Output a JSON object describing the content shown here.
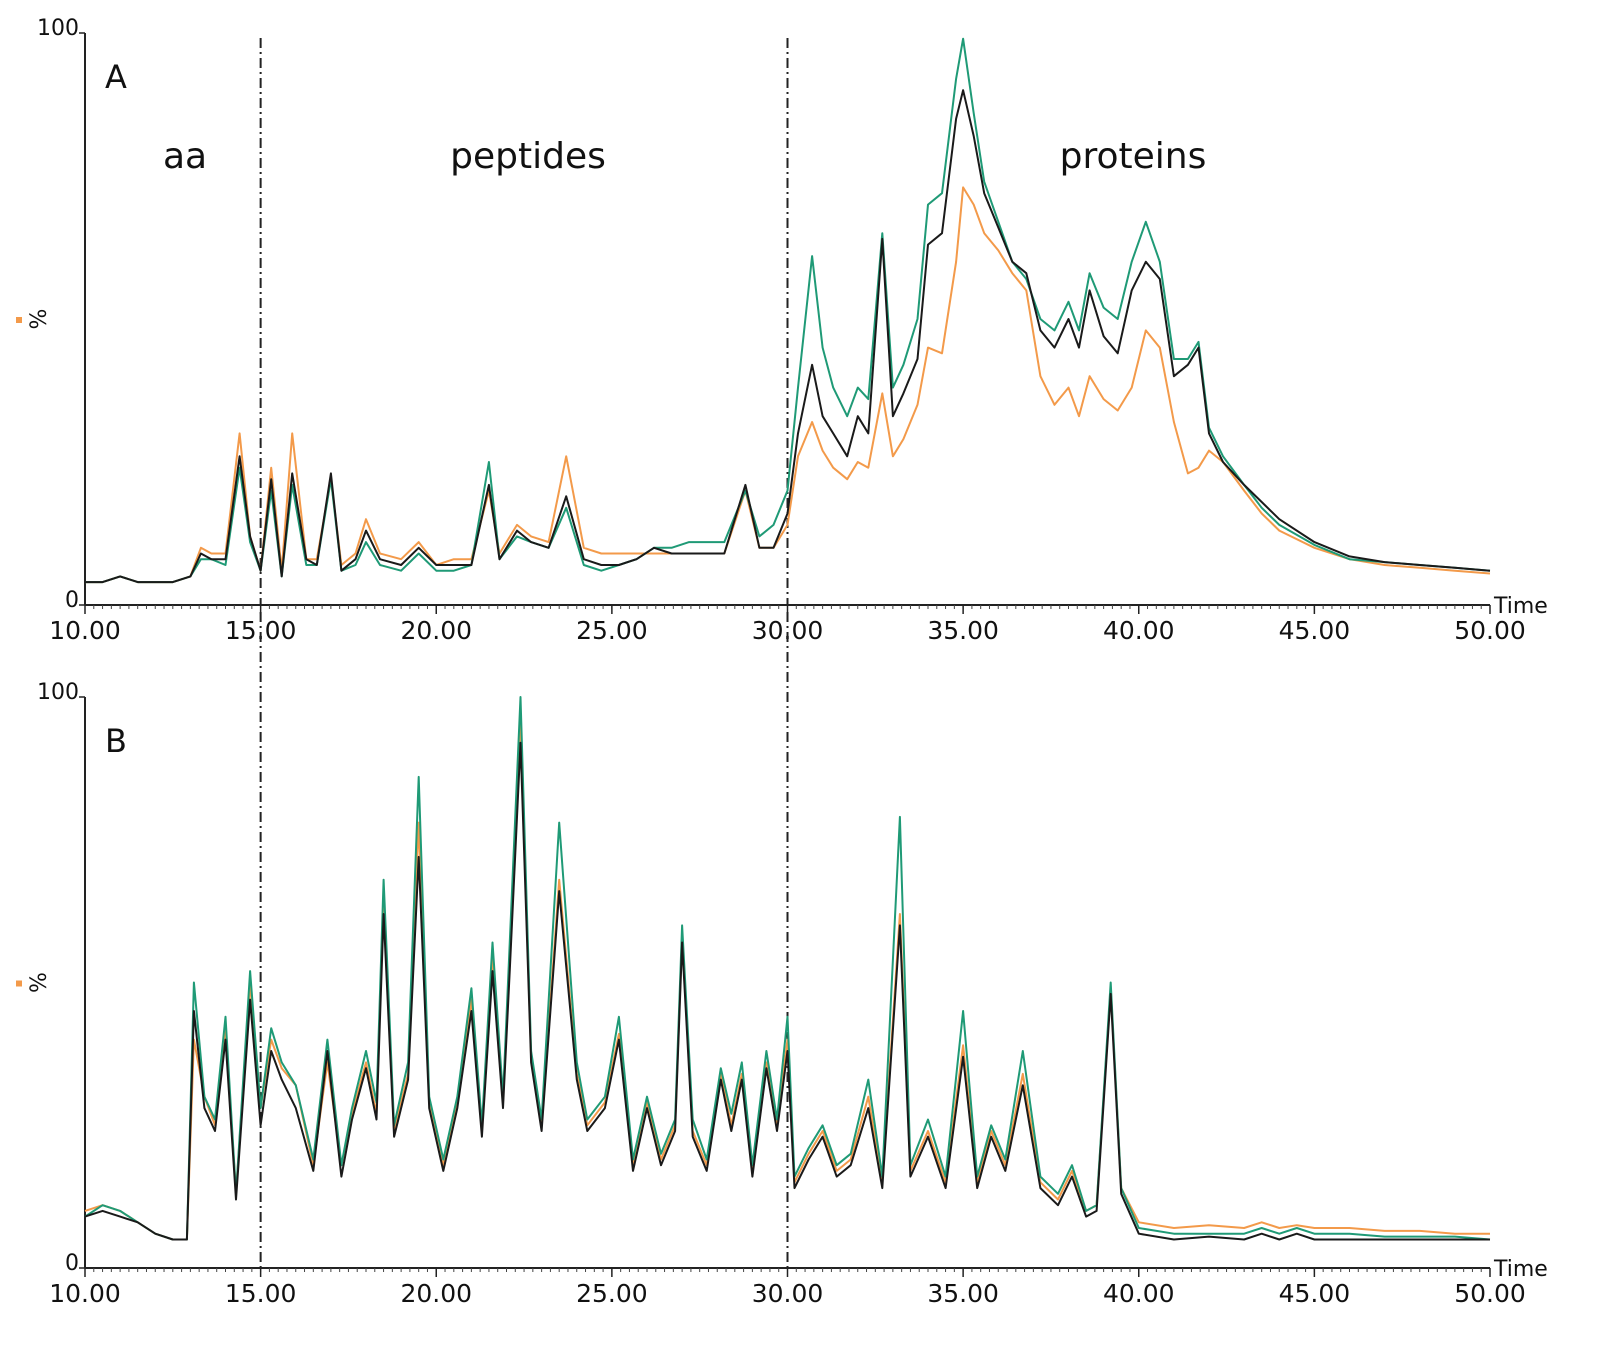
{
  "chart_data": [
    {
      "type": "line",
      "panel_label": "A",
      "annotations": [
        "aa",
        "peptides",
        "proteins"
      ],
      "ylabel": "%",
      "xlabel": "Time",
      "vlines": [
        15,
        30
      ],
      "xlim": [
        10,
        50
      ],
      "ylim": [
        0,
        100
      ],
      "yticks": [
        0,
        100
      ],
      "xticks": [
        {
          "value": 10,
          "label": "10.00"
        },
        {
          "value": 15,
          "label": "15.00"
        },
        {
          "value": 20,
          "label": "20.00"
        },
        {
          "value": 25,
          "label": "25.00"
        },
        {
          "value": 30,
          "label": "30.00"
        },
        {
          "value": 35,
          "label": "35.00"
        },
        {
          "value": 40,
          "label": "40.00"
        },
        {
          "value": 45,
          "label": "45.00"
        },
        {
          "value": 50,
          "label": "50.00"
        }
      ],
      "x": [
        10,
        10.5,
        11,
        11.5,
        12,
        12.5,
        13,
        13.3,
        13.6,
        14,
        14.4,
        14.7,
        15,
        15.3,
        15.6,
        15.9,
        16.3,
        16.6,
        17,
        17.3,
        17.7,
        18,
        18.4,
        19,
        19.5,
        20,
        20.5,
        21,
        21.5,
        21.8,
        22.3,
        22.7,
        23.2,
        23.7,
        24.2,
        24.7,
        25.2,
        25.7,
        26.2,
        26.7,
        27.2,
        27.7,
        28.2,
        28.8,
        29.2,
        29.6,
        30,
        30.3,
        30.7,
        31,
        31.3,
        31.7,
        32,
        32.3,
        32.7,
        33,
        33.3,
        33.7,
        34,
        34.4,
        34.8,
        35,
        35.3,
        35.6,
        36,
        36.4,
        36.8,
        37.2,
        37.6,
        38,
        38.3,
        38.6,
        39,
        39.4,
        39.8,
        40.2,
        40.6,
        41,
        41.4,
        41.7,
        42,
        42.4,
        43,
        43.5,
        44,
        45,
        46,
        47,
        48,
        49,
        50
      ],
      "series": [
        {
          "color": "#f39a4a",
          "values": [
            4,
            4,
            5,
            4,
            4,
            4,
            5,
            10,
            9,
            9,
            30,
            12,
            6,
            24,
            6,
            30,
            8,
            8,
            22,
            7,
            9,
            15,
            9,
            8,
            11,
            7,
            8,
            8,
            20,
            9,
            14,
            12,
            11,
            26,
            10,
            9,
            9,
            9,
            9,
            9,
            9,
            9,
            9,
            20,
            10,
            10,
            14,
            26,
            32,
            27,
            24,
            22,
            25,
            24,
            37,
            26,
            29,
            35,
            45,
            44,
            60,
            73,
            70,
            65,
            62,
            58,
            55,
            40,
            35,
            38,
            33,
            40,
            36,
            34,
            38,
            48,
            45,
            32,
            23,
            24,
            27,
            25,
            20,
            16,
            13,
            10,
            8,
            7,
            6.5,
            6,
            5.5
          ]
        },
        {
          "color": "#1f9a76",
          "values": [
            4,
            4,
            5,
            4,
            4,
            4,
            5,
            8,
            8,
            7,
            24,
            11,
            6,
            20,
            5,
            21,
            7,
            7,
            22,
            6,
            7,
            11,
            7,
            6,
            9,
            6,
            6,
            7,
            25,
            8,
            12,
            11,
            10,
            17,
            7,
            6,
            7,
            8,
            10,
            10,
            11,
            11,
            11,
            20,
            12,
            14,
            20,
            38,
            61,
            45,
            38,
            33,
            38,
            36,
            65,
            38,
            42,
            50,
            70,
            72,
            92,
            99,
            86,
            74,
            67,
            60,
            57,
            50,
            48,
            53,
            48,
            58,
            52,
            50,
            60,
            67,
            60,
            43,
            43,
            46,
            31,
            26,
            21,
            17,
            14,
            10.5,
            8,
            7.5,
            7,
            6.5,
            6
          ]
        },
        {
          "color": "#1a1a1a",
          "values": [
            4,
            4,
            5,
            4,
            4,
            4,
            5,
            9,
            8,
            8,
            26,
            12,
            6,
            22,
            5,
            23,
            8,
            7,
            23,
            6,
            8,
            13,
            8,
            7,
            10,
            7,
            7,
            7,
            21,
            8,
            13,
            11,
            10,
            19,
            8,
            7,
            7,
            8,
            10,
            9,
            9,
            9,
            9,
            21,
            10,
            10,
            16,
            30,
            42,
            33,
            30,
            26,
            33,
            30,
            64,
            33,
            37,
            43,
            63,
            65,
            85,
            90,
            82,
            72,
            66,
            60,
            58,
            48,
            45,
            50,
            45,
            55,
            47,
            44,
            55,
            60,
            57,
            40,
            42,
            45,
            30,
            25,
            21,
            18,
            15,
            11,
            8.5,
            7.5,
            7,
            6.5,
            6
          ]
        }
      ]
    },
    {
      "type": "line",
      "panel_label": "B",
      "ylabel": "%",
      "xlabel": "Time",
      "vlines": [
        15,
        30
      ],
      "xlim": [
        10,
        50
      ],
      "ylim": [
        0,
        100
      ],
      "yticks": [
        0,
        100
      ],
      "xticks": [
        {
          "value": 10,
          "label": "10.00"
        },
        {
          "value": 15,
          "label": "15.00"
        },
        {
          "value": 20,
          "label": "20.00"
        },
        {
          "value": 25,
          "label": "25.00"
        },
        {
          "value": 30,
          "label": "30.00"
        },
        {
          "value": 35,
          "label": "35.00"
        },
        {
          "value": 40,
          "label": "40.00"
        },
        {
          "value": 45,
          "label": "45.00"
        },
        {
          "value": 50,
          "label": "50.00"
        }
      ],
      "x": [
        10,
        10.5,
        11,
        11.5,
        12,
        12.5,
        12.9,
        13.1,
        13.4,
        13.7,
        14,
        14.3,
        14.7,
        15,
        15.3,
        15.6,
        16,
        16.5,
        16.9,
        17.3,
        17.6,
        18,
        18.3,
        18.5,
        18.8,
        19.2,
        19.5,
        19.8,
        20.2,
        20.6,
        21,
        21.3,
        21.6,
        21.9,
        22.1,
        22.4,
        22.7,
        23,
        23.5,
        24,
        24.3,
        24.8,
        25.2,
        25.6,
        26,
        26.4,
        26.8,
        27,
        27.3,
        27.7,
        28.1,
        28.4,
        28.7,
        29,
        29.4,
        29.7,
        30,
        30.2,
        30.6,
        31,
        31.4,
        31.8,
        32.3,
        32.7,
        33.2,
        33.5,
        34,
        34.5,
        35,
        35.4,
        35.8,
        36.2,
        36.7,
        37.2,
        37.7,
        38.1,
        38.5,
        38.8,
        39.2,
        39.5,
        40,
        41,
        42,
        43,
        43.5,
        44,
        44.5,
        45,
        46,
        47,
        48,
        49,
        50
      ],
      "series": [
        {
          "color": "#f39a4a",
          "values": [
            10,
            11,
            10,
            8,
            6,
            5,
            5,
            40,
            30,
            25,
            42,
            13,
            50,
            28,
            40,
            35,
            32,
            18,
            36,
            18,
            27,
            36,
            27,
            65,
            24,
            34,
            78,
            29,
            18,
            29,
            47,
            24,
            54,
            29,
            56,
            95,
            37,
            25,
            68,
            34,
            25,
            29,
            41,
            18,
            29,
            19,
            25,
            58,
            24,
            18,
            34,
            25,
            34,
            17,
            36,
            25,
            40,
            15,
            20,
            24,
            17,
            19,
            30,
            15,
            62,
            17,
            24,
            15,
            39,
            15,
            24,
            18,
            34,
            15,
            12,
            17,
            10,
            11,
            49,
            14,
            8,
            7,
            7.5,
            7,
            8,
            7,
            7.5,
            7,
            7,
            6.5,
            6.5,
            6,
            6
          ]
        },
        {
          "color": "#1f9a76",
          "values": [
            9,
            11,
            10,
            8,
            6,
            5,
            5,
            50,
            30,
            26,
            44,
            13,
            52,
            28,
            42,
            36,
            32,
            19,
            40,
            18,
            28,
            38,
            29,
            68,
            25,
            36,
            86,
            30,
            19,
            30,
            49,
            25,
            57,
            30,
            58,
            100,
            38,
            26,
            78,
            36,
            26,
            30,
            44,
            19,
            30,
            20,
            26,
            60,
            26,
            19,
            35,
            27,
            36,
            18,
            38,
            26,
            44,
            16,
            21,
            25,
            18,
            20,
            33,
            16,
            79,
            18,
            26,
            16,
            45,
            16,
            25,
            19,
            38,
            16,
            13,
            18,
            10,
            11,
            50,
            14,
            7,
            6,
            6,
            6,
            7,
            6,
            7,
            6,
            6,
            5.5,
            5.5,
            5.5,
            5
          ]
        },
        {
          "color": "#1a1a1a",
          "values": [
            9,
            10,
            9,
            8,
            6,
            5,
            5,
            45,
            28,
            24,
            40,
            12,
            47,
            25,
            38,
            33,
            28,
            17,
            38,
            16,
            26,
            35,
            26,
            62,
            23,
            33,
            72,
            28,
            17,
            28,
            45,
            23,
            52,
            28,
            53,
            92,
            36,
            24,
            66,
            33,
            24,
            28,
            40,
            17,
            28,
            18,
            24,
            57,
            23,
            17,
            33,
            24,
            33,
            16,
            35,
            24,
            38,
            14,
            19,
            23,
            16,
            18,
            28,
            14,
            60,
            16,
            23,
            14,
            37,
            14,
            23,
            17,
            32,
            14,
            11,
            16,
            9,
            10,
            48,
            13,
            6,
            5,
            5.5,
            5,
            6,
            5,
            6,
            5,
            5,
            5,
            5,
            5,
            5
          ]
        }
      ]
    }
  ]
}
